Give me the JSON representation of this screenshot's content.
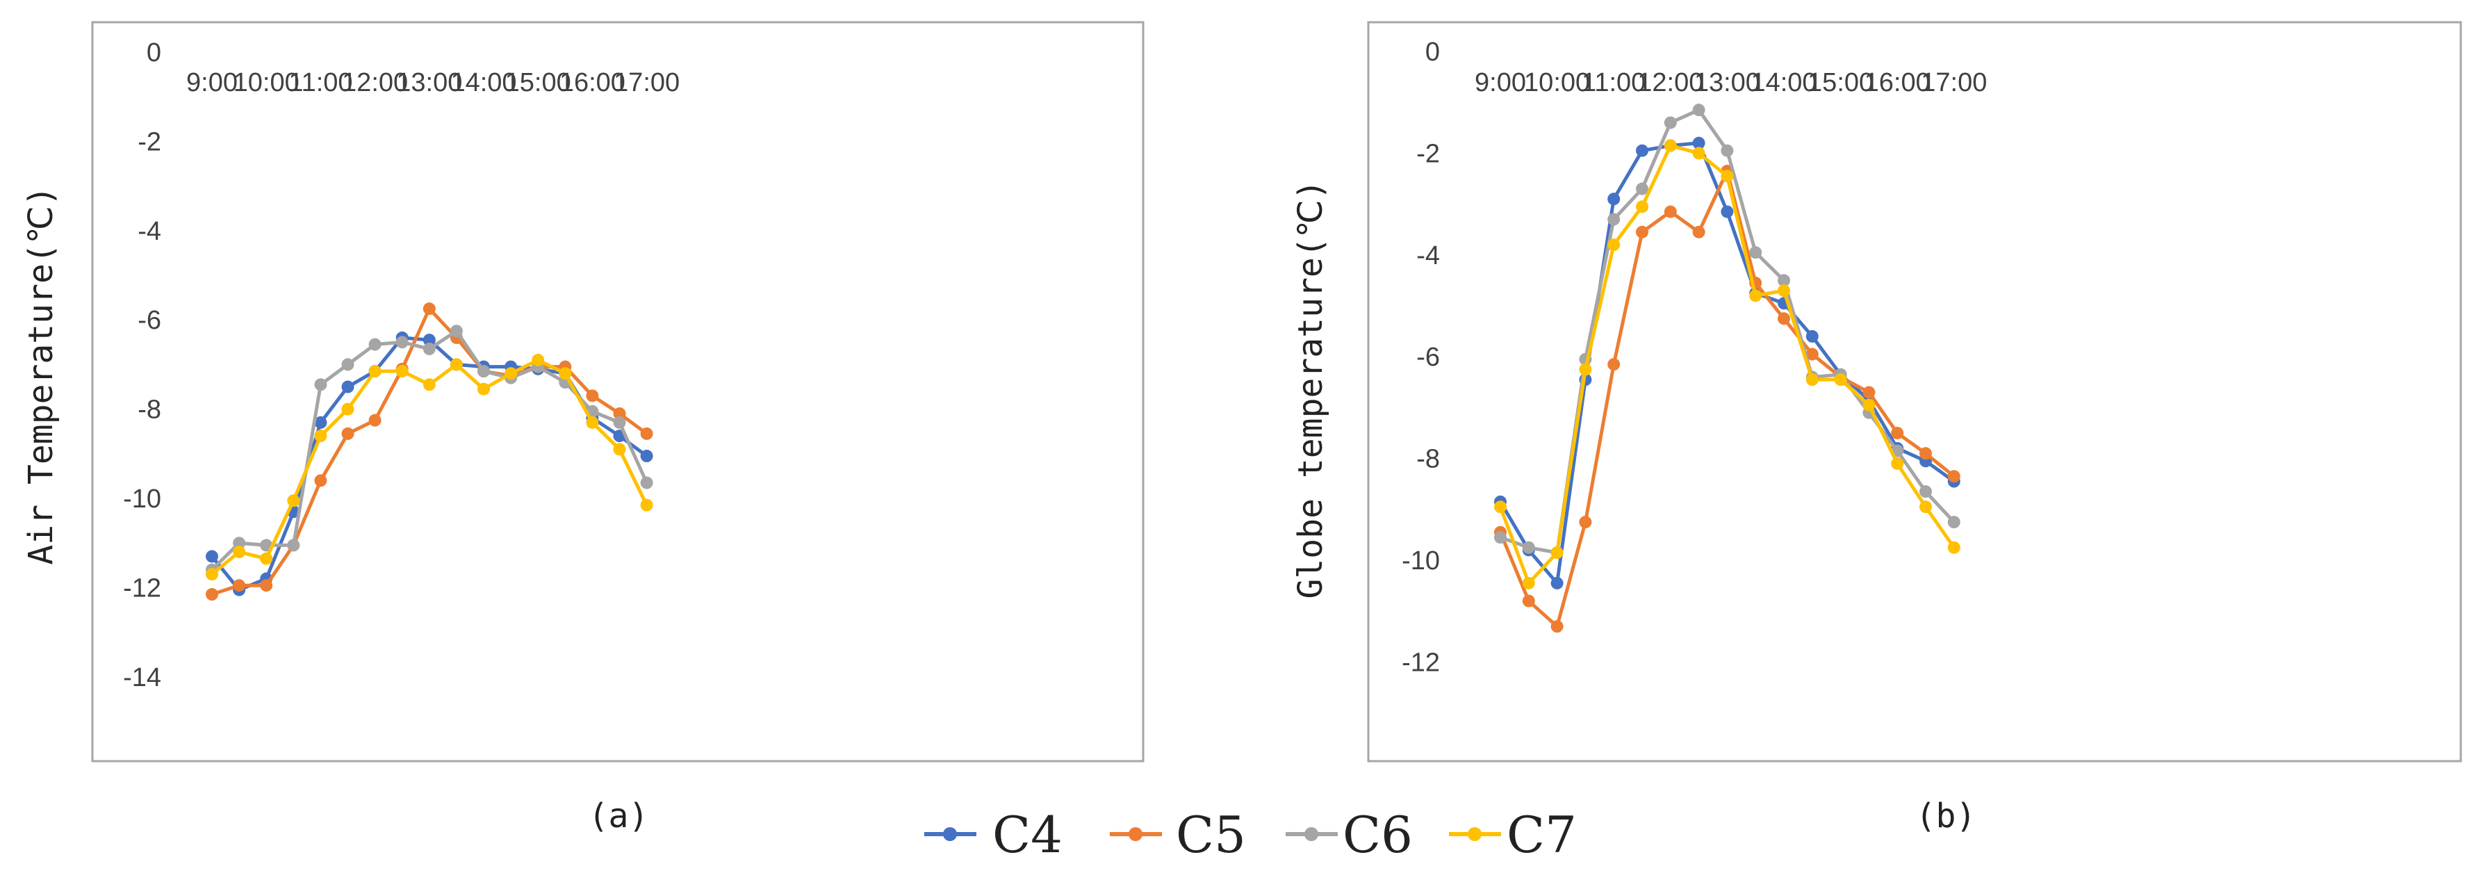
{
  "chart_data": [
    {
      "type": "line",
      "panel": "a",
      "caption": "(a)",
      "ylabel": "Air Temperature(℃)",
      "xlabel": "",
      "categories": [
        "9:00",
        "9:30",
        "10:00",
        "10:30",
        "11:00",
        "11:30",
        "12:00",
        "12:30",
        "13:00",
        "13:30",
        "14:00",
        "14:30",
        "15:00",
        "15:30",
        "16:00",
        "16:30",
        "17:00"
      ],
      "x_tick_labels": [
        "9:00",
        "10:00",
        "11:00",
        "12:00",
        "13:00",
        "14:00",
        "15:00",
        "16:00",
        "17:00"
      ],
      "y_ticks": [
        0,
        -2,
        -4,
        -6,
        -8,
        -10,
        -12,
        -14
      ],
      "y_tick_labels": [
        "0",
        "-2",
        "-4",
        "-6",
        "-8",
        "-10",
        "-12",
        "-14"
      ],
      "ylim": [
        -16,
        0
      ],
      "grid": false,
      "series": [
        {
          "name": "C4",
          "values": [
            -11.3,
            -12.05,
            -11.8,
            -10.3,
            -8.3,
            -7.5,
            -7.15,
            -6.4,
            -6.45,
            -7.0,
            -7.05,
            -7.05,
            -7.1,
            -7.2,
            -8.2,
            -8.6,
            -9.05
          ]
        },
        {
          "name": "C5",
          "values": [
            -12.15,
            -11.95,
            -11.95,
            -11.05,
            -9.6,
            -8.55,
            -8.25,
            -7.1,
            -5.75,
            -6.4,
            -7.15,
            -7.25,
            -7.05,
            -7.05,
            -7.7,
            -8.1,
            -8.55
          ]
        },
        {
          "name": "C6",
          "values": [
            -11.6,
            -11.0,
            -11.05,
            -11.05,
            -7.45,
            -7.0,
            -6.55,
            -6.5,
            -6.65,
            -6.25,
            -7.15,
            -7.3,
            -7.05,
            -7.4,
            -8.05,
            -8.3,
            -9.65
          ]
        },
        {
          "name": "C7",
          "values": [
            -11.7,
            -11.2,
            -11.35,
            -10.05,
            -8.6,
            -8.0,
            -7.15,
            -7.15,
            -7.45,
            -7.0,
            -7.55,
            -7.2,
            -6.9,
            -7.2,
            -8.3,
            -8.9,
            -10.15
          ]
        }
      ]
    },
    {
      "type": "line",
      "panel": "b",
      "caption": "(b)",
      "ylabel": "Globe temperature(℃)",
      "xlabel": "",
      "categories": [
        "9:00",
        "9:30",
        "10:00",
        "10:30",
        "11:00",
        "11:30",
        "12:00",
        "12:30",
        "13:00",
        "13:30",
        "14:00",
        "14:30",
        "15:00",
        "15:30",
        "16:00",
        "16:30",
        "17:00"
      ],
      "x_tick_labels": [
        "9:00",
        "10:00",
        "11:00",
        "12:00",
        "13:00",
        "14:00",
        "15:00",
        "16:00",
        "17:00"
      ],
      "y_ticks": [
        0,
        -2,
        -4,
        -6,
        -8,
        -10,
        -12
      ],
      "y_tick_labels": [
        "0",
        "-2",
        "-4",
        "-6",
        "-8",
        "-10",
        "-12"
      ],
      "ylim": [
        -13.5,
        0
      ],
      "grid": false,
      "series": [
        {
          "name": "C4",
          "values": [
            -8.85,
            -9.8,
            -10.45,
            -6.45,
            -2.9,
            -1.95,
            -1.85,
            -1.8,
            -3.15,
            -4.75,
            -4.95,
            -5.6,
            -6.35,
            -6.85,
            -7.8,
            -8.05,
            -8.45
          ]
        },
        {
          "name": "C5",
          "values": [
            -9.45,
            -10.8,
            -11.3,
            -9.25,
            -6.15,
            -3.55,
            -3.15,
            -3.55,
            -2.35,
            -4.55,
            -5.25,
            -5.95,
            -6.4,
            -6.7,
            -7.5,
            -7.9,
            -8.35
          ]
        },
        {
          "name": "C6",
          "values": [
            -9.55,
            -9.75,
            -9.85,
            -6.05,
            -3.3,
            -2.7,
            -1.4,
            -1.15,
            -1.95,
            -3.95,
            -4.5,
            -6.4,
            -6.35,
            -7.1,
            -7.85,
            -8.65,
            -9.25
          ]
        },
        {
          "name": "C7",
          "values": [
            -8.95,
            -10.45,
            -9.85,
            -6.25,
            -3.8,
            -3.05,
            -1.85,
            -2.0,
            -2.45,
            -4.8,
            -4.7,
            -6.45,
            -6.45,
            -6.95,
            -8.1,
            -8.95,
            -9.75
          ]
        }
      ]
    }
  ],
  "legend": {
    "placement": "bottom-center",
    "entries": [
      "C4",
      "C5",
      "C6",
      "C7"
    ]
  },
  "colors": {
    "C4": "#4472c4",
    "C5": "#ed7d31",
    "C6": "#a5a5a5",
    "C7": "#ffc000",
    "frame": "#a6a6a6",
    "tick_text": "#404040"
  }
}
